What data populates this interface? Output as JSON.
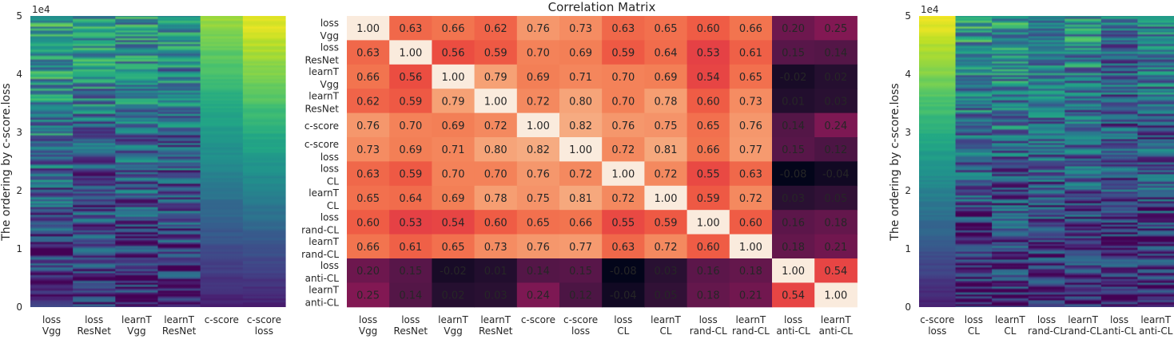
{
  "chart_data": [
    {
      "type": "heatmap",
      "subtype": "ordering-strip-heatmap",
      "title": "",
      "ylabel": "The ordering by c-score.loss",
      "y_exponent_label": "1e4",
      "ylim": [
        0,
        5
      ],
      "yticks": [
        "0",
        "1",
        "2",
        "3",
        "4",
        "5"
      ],
      "columns": [
        [
          "loss",
          "Vgg"
        ],
        [
          "loss",
          "ResNet"
        ],
        [
          "learnT",
          "Vgg"
        ],
        [
          "learnT",
          "ResNet"
        ],
        [
          "c-score"
        ],
        [
          "c-score",
          "loss"
        ]
      ],
      "colormap": "viridis"
    },
    {
      "type": "heatmap",
      "title": "Correlation Matrix",
      "row_labels": [
        [
          "loss",
          "Vgg"
        ],
        [
          "loss",
          "ResNet"
        ],
        [
          "learnT",
          "Vgg"
        ],
        [
          "learnT",
          "ResNet"
        ],
        [
          "c-score"
        ],
        [
          "c-score",
          "loss"
        ],
        [
          "loss",
          "CL"
        ],
        [
          "learnT",
          "CL"
        ],
        [
          "loss",
          "rand-CL"
        ],
        [
          "learnT",
          "rand-CL"
        ],
        [
          "loss",
          "anti-CL"
        ],
        [
          "learnT",
          "anti-CL"
        ]
      ],
      "col_labels": [
        [
          "loss",
          "Vgg"
        ],
        [
          "loss",
          "ResNet"
        ],
        [
          "learnT",
          "Vgg"
        ],
        [
          "learnT",
          "ResNet"
        ],
        [
          "c-score"
        ],
        [
          "c-score",
          "loss"
        ],
        [
          "loss",
          "CL"
        ],
        [
          "learnT",
          "CL"
        ],
        [
          "loss",
          "rand-CL"
        ],
        [
          "learnT",
          "rand-CL"
        ],
        [
          "loss",
          "anti-CL"
        ],
        [
          "learnT",
          "anti-CL"
        ]
      ],
      "values": [
        [
          1.0,
          0.63,
          0.66,
          0.62,
          0.76,
          0.73,
          0.63,
          0.65,
          0.6,
          0.66,
          0.2,
          0.25
        ],
        [
          0.63,
          1.0,
          0.56,
          0.59,
          0.7,
          0.69,
          0.59,
          0.64,
          0.53,
          0.61,
          0.15,
          0.14
        ],
        [
          0.66,
          0.56,
          1.0,
          0.79,
          0.69,
          0.71,
          0.7,
          0.69,
          0.54,
          0.65,
          -0.02,
          0.02
        ],
        [
          0.62,
          0.59,
          0.79,
          1.0,
          0.72,
          0.8,
          0.7,
          0.78,
          0.6,
          0.73,
          0.01,
          0.03
        ],
        [
          0.76,
          0.7,
          0.69,
          0.72,
          1.0,
          0.82,
          0.76,
          0.75,
          0.65,
          0.76,
          0.14,
          0.24
        ],
        [
          0.73,
          0.69,
          0.71,
          0.8,
          0.82,
          1.0,
          0.72,
          0.81,
          0.66,
          0.77,
          0.15,
          0.12
        ],
        [
          0.63,
          0.59,
          0.7,
          0.7,
          0.76,
          0.72,
          1.0,
          0.72,
          0.55,
          0.63,
          -0.08,
          -0.04
        ],
        [
          0.65,
          0.64,
          0.69,
          0.78,
          0.75,
          0.81,
          0.72,
          1.0,
          0.59,
          0.72,
          0.03,
          0.05
        ],
        [
          0.6,
          0.53,
          0.54,
          0.6,
          0.65,
          0.66,
          0.55,
          0.59,
          1.0,
          0.6,
          0.16,
          0.18
        ],
        [
          0.66,
          0.61,
          0.65,
          0.73,
          0.76,
          0.77,
          0.63,
          0.72,
          0.6,
          1.0,
          0.18,
          0.21
        ],
        [
          0.2,
          0.15,
          -0.02,
          0.01,
          0.14,
          0.15,
          -0.08,
          0.03,
          0.16,
          0.18,
          1.0,
          0.54
        ],
        [
          0.25,
          0.14,
          0.02,
          0.03,
          0.24,
          0.12,
          -0.04,
          0.05,
          0.18,
          0.21,
          0.54,
          1.0
        ]
      ],
      "colormap": "rocket",
      "vmin": -0.08,
      "vmax": 1.0
    },
    {
      "type": "heatmap",
      "subtype": "ordering-strip-heatmap",
      "title": "",
      "ylabel": "The ordering by c-score.loss",
      "y_exponent_label": "1e4",
      "ylim": [
        0,
        5
      ],
      "yticks": [
        "0",
        "1",
        "2",
        "3",
        "4",
        "5"
      ],
      "columns": [
        [
          "c-score",
          "loss"
        ],
        [
          "loss",
          "CL"
        ],
        [
          "learnT",
          "CL"
        ],
        [
          "loss",
          "rand-CL"
        ],
        [
          "learnT",
          "rand-CL"
        ],
        [
          "loss",
          "anti-CL"
        ],
        [
          "learnT",
          "anti-CL"
        ]
      ],
      "colormap": "viridis"
    }
  ]
}
